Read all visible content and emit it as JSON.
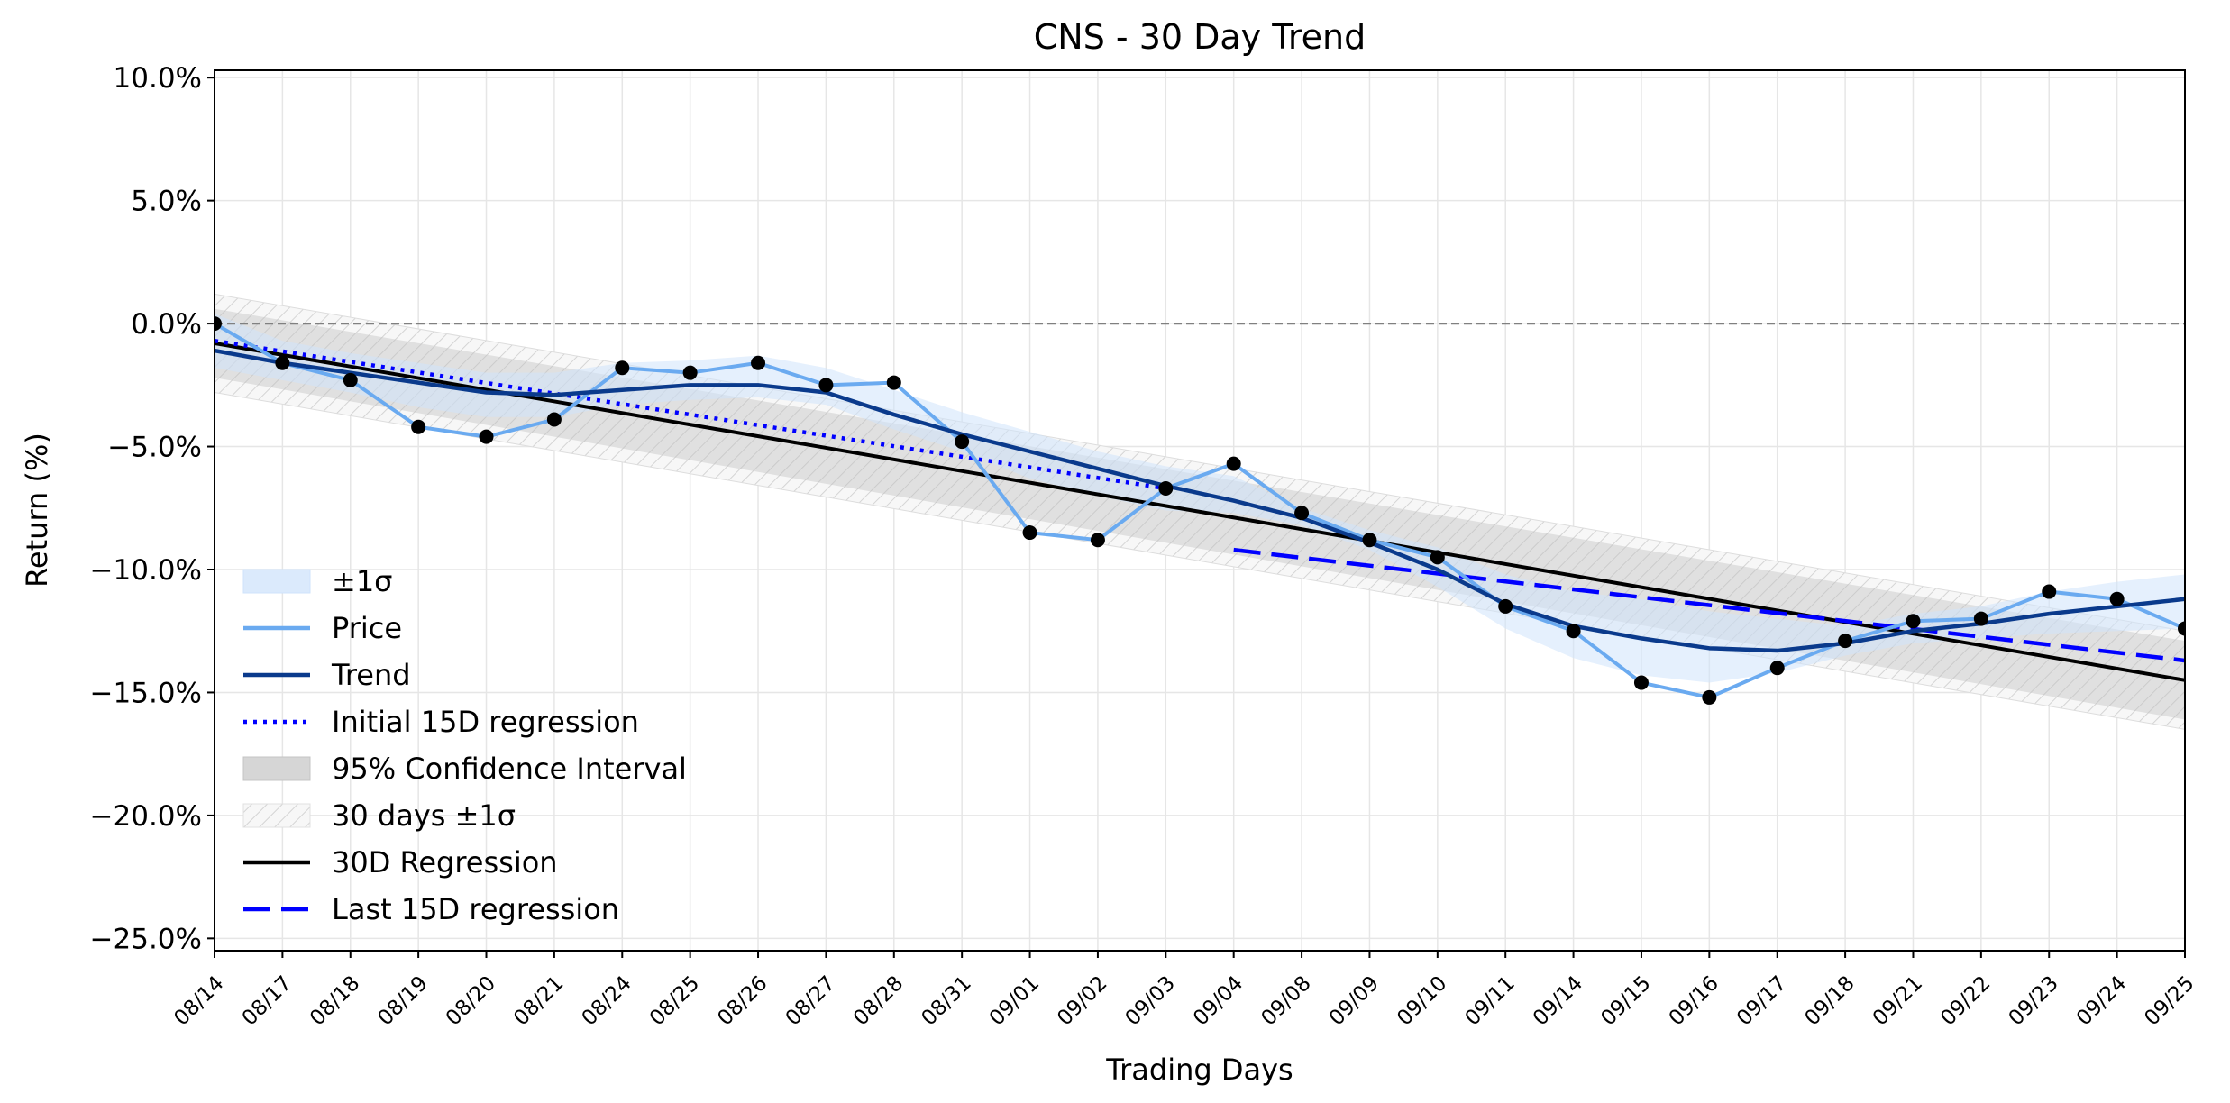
{
  "chart_data": {
    "type": "line",
    "title": "CNS - 30 Day Trend",
    "xlabel": "Trading Days",
    "ylabel": "Return (%)",
    "ylim": [
      -25.5,
      10.3
    ],
    "yticks": [
      10,
      5,
      0,
      -5,
      -10,
      -15,
      -20,
      -25
    ],
    "ytick_labels": [
      "10.0%",
      "5.0%",
      "0.0%",
      "−5.0%",
      "−10.0%",
      "−15.0%",
      "−20.0%",
      "−25.0%"
    ],
    "grid": true,
    "zero_line": {
      "y": 0,
      "style": "dashed",
      "color": "#808080"
    },
    "categories": [
      "08/14",
      "08/17",
      "08/18",
      "08/19",
      "08/20",
      "08/21",
      "08/24",
      "08/25",
      "08/26",
      "08/27",
      "08/28",
      "08/31",
      "09/01",
      "09/02",
      "09/03",
      "09/04",
      "09/08",
      "09/09",
      "09/10",
      "09/11",
      "09/14",
      "09/15",
      "09/16",
      "09/17",
      "09/18",
      "09/21",
      "09/22",
      "09/23",
      "09/24",
      "09/25"
    ],
    "series": [
      {
        "name": "Price",
        "color": "#6aaaf0",
        "values": [
          0.0,
          -1.6,
          -2.3,
          -4.2,
          -4.6,
          -3.9,
          -1.8,
          -2.0,
          -1.6,
          -2.5,
          -2.4,
          -4.8,
          -8.5,
          -8.8,
          -6.7,
          -5.7,
          -7.7,
          -8.8,
          -9.5,
          -11.5,
          -12.5,
          -14.6,
          -15.2,
          -14.0,
          -12.9,
          -12.1,
          -12.0,
          -10.9,
          -11.2,
          -12.4
        ]
      },
      {
        "name": "Trend",
        "color": "#0a3a8c",
        "values": [
          -1.1,
          -1.6,
          -2.0,
          -2.4,
          -2.8,
          -2.9,
          -2.7,
          -2.5,
          -2.5,
          -2.8,
          -3.7,
          -4.5,
          -5.2,
          -5.9,
          -6.6,
          -7.2,
          -7.9,
          -8.9,
          -10.0,
          -11.4,
          -12.3,
          -12.8,
          -13.2,
          -13.3,
          -13.0,
          -12.5,
          -12.2,
          -11.8,
          -11.5,
          -11.2
        ]
      },
      {
        "name": "±1σ",
        "color": "#dbeafc",
        "lower": [
          -1.8,
          -2.3,
          -2.8,
          -3.4,
          -3.8,
          -3.8,
          -3.3,
          -3.1,
          -3.0,
          -3.3,
          -4.3,
          -5.2,
          -6.3,
          -7.0,
          -7.6,
          -7.7,
          -8.2,
          -9.2,
          -10.7,
          -12.4,
          -13.6,
          -14.3,
          -14.6,
          -14.2,
          -13.5,
          -13.0,
          -12.8,
          -12.6,
          -12.5,
          -12.4
        ],
        "upper": [
          0.4,
          -0.7,
          -1.2,
          -1.6,
          -2.0,
          -2.0,
          -1.6,
          -1.5,
          -1.3,
          -1.8,
          -2.7,
          -3.6,
          -4.4,
          -5.2,
          -5.8,
          -6.2,
          -7.5,
          -8.4,
          -9.1,
          -10.2,
          -10.9,
          -11.2,
          -11.7,
          -12.0,
          -12.3,
          -11.8,
          -11.5,
          -10.9,
          -10.5,
          -10.2
        ]
      },
      {
        "name": "Initial 15D regression",
        "color": "#0000ff",
        "style": "dotted",
        "x_range": [
          "08/14",
          "09/03"
        ],
        "y_range": [
          -0.7,
          -6.7
        ]
      },
      {
        "name": "95% Confidence Interval",
        "color": "#c8c8c8",
        "start_halfwidth": 1.4,
        "end_halfwidth": 1.6
      },
      {
        "name": "30 days ±1σ",
        "color": "#d9d9d9",
        "pattern": "hatch",
        "halfwidth": 2.0
      },
      {
        "name": "30D Regression",
        "color": "#000000",
        "y_start": -0.8,
        "y_end": -14.5
      },
      {
        "name": "Last 15D regression",
        "color": "#0000ff",
        "style": "dashed",
        "x_range": [
          "09/04",
          "09/25"
        ],
        "y_range": [
          -9.2,
          -13.7
        ]
      }
    ],
    "legend": {
      "position": "lower-left",
      "entries": [
        "±1σ",
        "Price",
        "Trend",
        "Initial 15D regression",
        "95% Confidence Interval",
        "30 days ±1σ",
        "30D Regression",
        "Last 15D regression"
      ]
    }
  }
}
